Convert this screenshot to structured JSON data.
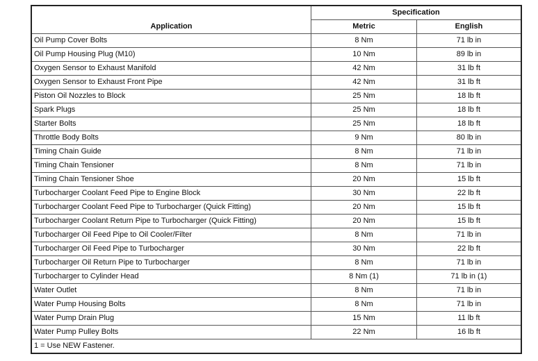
{
  "header": {
    "application": "Application",
    "specification": "Specification",
    "metric": "Metric",
    "english": "English"
  },
  "rows": [
    {
      "app": "Oil Pump Cover Bolts",
      "metric": "8 Nm",
      "english": "71 lb in"
    },
    {
      "app": "Oil Pump Housing Plug (M10)",
      "metric": "10 Nm",
      "english": "89 lb in"
    },
    {
      "app": "Oxygen Sensor to Exhaust Manifold",
      "metric": "42 Nm",
      "english": "31 lb ft"
    },
    {
      "app": "Oxygen Sensor to Exhaust Front Pipe",
      "metric": "42 Nm",
      "english": "31 lb ft"
    },
    {
      "app": "Piston Oil Nozzles to Block",
      "metric": "25 Nm",
      "english": "18 lb ft"
    },
    {
      "app": "Spark Plugs",
      "metric": "25 Nm",
      "english": "18 lb ft"
    },
    {
      "app": "Starter Bolts",
      "metric": "25 Nm",
      "english": "18 lb ft"
    },
    {
      "app": "Throttle Body Bolts",
      "metric": "9 Nm",
      "english": "80 lb in"
    },
    {
      "app": "Timing Chain Guide",
      "metric": "8 Nm",
      "english": "71 lb in"
    },
    {
      "app": "Timing Chain Tensioner",
      "metric": "8 Nm",
      "english": "71 lb in"
    },
    {
      "app": "Timing Chain Tensioner Shoe",
      "metric": "20 Nm",
      "english": "15 lb ft"
    },
    {
      "app": "Turbocharger Coolant Feed Pipe to Engine Block",
      "metric": "30 Nm",
      "english": "22 lb ft"
    },
    {
      "app": "Turbocharger Coolant Feed Pipe to Turbocharger (Quick Fitting)",
      "metric": "20 Nm",
      "english": "15 lb ft"
    },
    {
      "app": "Turbocharger Coolant Return Pipe to Turbocharger (Quick Fitting)",
      "metric": "20 Nm",
      "english": "15 lb ft"
    },
    {
      "app": "Turbocharger Oil Feed Pipe to Oil Cooler/Filter",
      "metric": "8 Nm",
      "english": "71 lb in"
    },
    {
      "app": "Turbocharger Oil Feed Pipe to Turbocharger",
      "metric": "30 Nm",
      "english": "22 lb ft"
    },
    {
      "app": "Turbocharger Oil Return Pipe to Turbocharger",
      "metric": "8 Nm",
      "english": "71 lb in"
    },
    {
      "app": "Turbocharger to Cylinder Head",
      "metric": "8 Nm (1)",
      "english": "71 lb in (1)"
    },
    {
      "app": "Water Outlet",
      "metric": "8 Nm",
      "english": "71 lb in"
    },
    {
      "app": "Water Pump Housing Bolts",
      "metric": "8 Nm",
      "english": "71 lb in"
    },
    {
      "app": "Water Pump Drain Plug",
      "metric": "15 Nm",
      "english": "11 lb ft"
    },
    {
      "app": "Water Pump Pulley Bolts",
      "metric": "22 Nm",
      "english": "16 lb ft"
    }
  ],
  "footnote": "1 = Use NEW Fastener."
}
